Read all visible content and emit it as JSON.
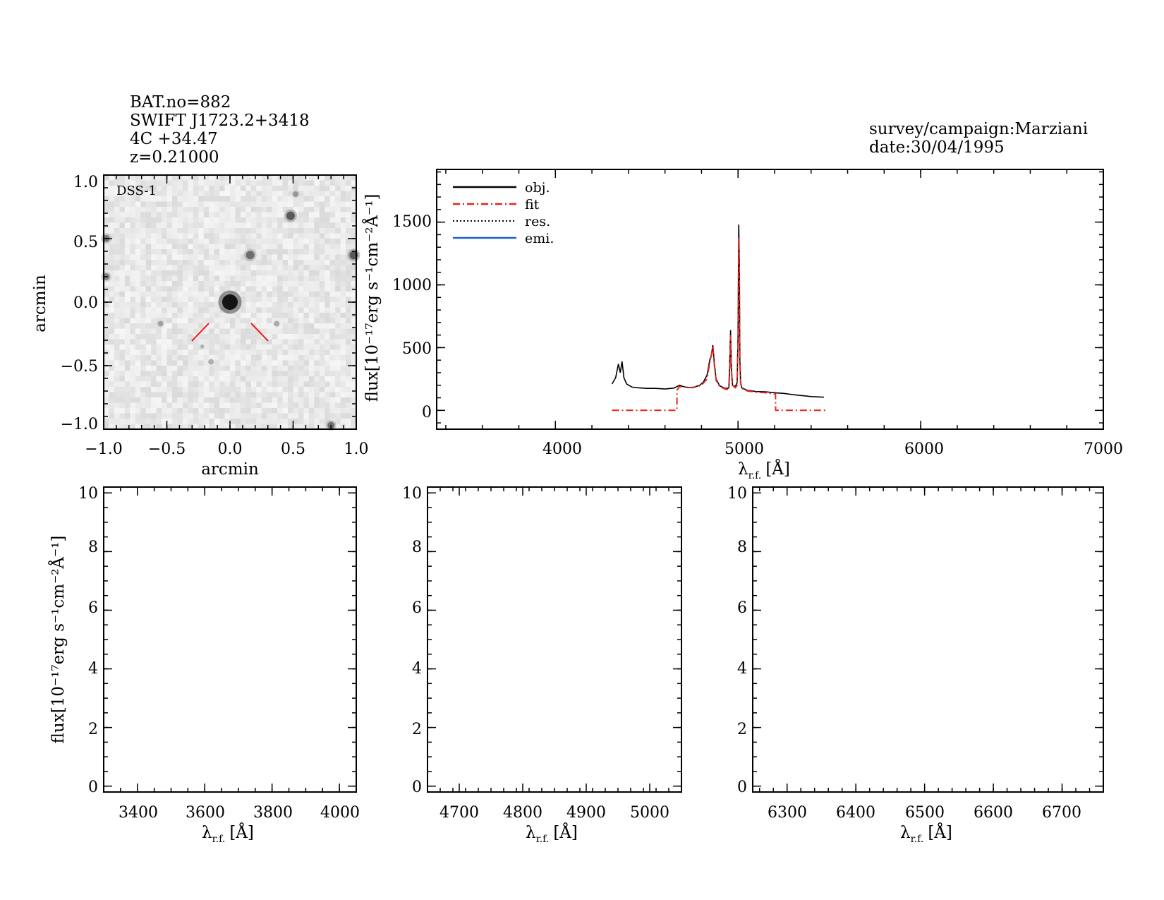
{
  "header": {
    "left_lines": [
      "BAT.no=882",
      "SWIFT J1723.2+3418",
      "4C +34.47",
      "z=0.21000"
    ],
    "right_lines": [
      "survey/campaign:Marziani",
      "date:30/04/1995"
    ]
  },
  "colors": {
    "obj": "#000000",
    "fit": "#e8221e",
    "res": "#000000",
    "emi": "#1f5fd6"
  },
  "chart_data": [
    {
      "type": "heatmap",
      "image_label": "DSS-1",
      "xlabel": "arcmin",
      "ylabel": "arcmin",
      "xlim": [
        -1.0,
        1.0
      ],
      "ylim": [
        -1.0,
        1.0
      ],
      "xticks": [
        "−1.0",
        "−0.5",
        "0.0",
        "0.5",
        "1.0"
      ],
      "yticks": [
        "1.0",
        "0.5",
        "0.0",
        "−0.5",
        "−1.0"
      ],
      "marker_color": "#e8221e"
    },
    {
      "type": "line",
      "xlabel_main": "λ",
      "xlabel_sub": "r.f.",
      "xlabel_unit": "[Å]",
      "ylabel": "flux[10⁻¹⁷erg s⁻¹cm⁻²Å⁻¹]",
      "xlim": [
        3350,
        7000
      ],
      "ylim": [
        -150,
        1920
      ],
      "xticks": [
        "4000",
        "5000",
        "6000",
        "7000"
      ],
      "yticks": [
        "0",
        "500",
        "1000",
        "1500"
      ],
      "legend": [
        "obj.",
        "fit",
        "res.",
        "emi."
      ],
      "legend_position": "top-left",
      "series": [
        {
          "name": "obj.",
          "x": [
            4310,
            4330,
            4345,
            4355,
            4365,
            4375,
            4390,
            4420,
            4450,
            4500,
            4550,
            4600,
            4650,
            4680,
            4700,
            4730,
            4760,
            4790,
            4810,
            4830,
            4845,
            4855,
            4862,
            4870,
            4880,
            4900,
            4930,
            4950,
            4955,
            4959,
            4963,
            4970,
            4985,
            4995,
            5000,
            5004,
            5007,
            5010,
            5014,
            5020,
            5050,
            5100,
            5150,
            5200,
            5250,
            5300,
            5350,
            5400,
            5470
          ],
          "y": [
            210,
            260,
            370,
            300,
            390,
            260,
            210,
            185,
            180,
            175,
            175,
            170,
            178,
            200,
            190,
            182,
            185,
            200,
            225,
            280,
            400,
            450,
            520,
            380,
            250,
            195,
            175,
            178,
            400,
            640,
            350,
            200,
            190,
            220,
            600,
            1480,
            1200,
            400,
            230,
            180,
            160,
            150,
            148,
            140,
            135,
            125,
            118,
            110,
            105
          ]
        },
        {
          "name": "fit",
          "x": [
            4310,
            4665,
            4666,
            4680,
            4700,
            4750,
            4800,
            4830,
            4845,
            4855,
            4862,
            4870,
            4880,
            4900,
            4930,
            4950,
            4955,
            4959,
            4963,
            4970,
            4985,
            4995,
            5000,
            5004,
            5007,
            5010,
            5014,
            5020,
            5050,
            5100,
            5150,
            5205,
            5206,
            5480
          ],
          "y": [
            0,
            0,
            160,
            190,
            185,
            180,
            200,
            250,
            380,
            450,
            515,
            370,
            240,
            190,
            170,
            165,
            350,
            600,
            330,
            200,
            180,
            200,
            560,
            1380,
            1150,
            380,
            220,
            175,
            155,
            145,
            140,
            130,
            0,
            0
          ]
        }
      ]
    },
    {
      "type": "line",
      "xlabel_main": "λ",
      "xlabel_sub": "r.f.",
      "xlabel_unit": "[Å]",
      "ylabel": "flux[10⁻¹⁷erg s⁻¹cm⁻²Å⁻¹]",
      "xlim": [
        3300,
        4050
      ],
      "ylim": [
        -0.2,
        10.2
      ],
      "xticks": [
        3400,
        3600,
        3800,
        4000
      ],
      "yticks": [
        0,
        2,
        4,
        6,
        8,
        10
      ],
      "series": []
    },
    {
      "type": "line",
      "xlabel_main": "λ",
      "xlabel_sub": "r.f.",
      "xlabel_unit": "[Å]",
      "xlim": [
        4650,
        5050
      ],
      "ylim": [
        -0.2,
        10.2
      ],
      "xticks": [
        4700,
        4800,
        4900,
        5000
      ],
      "yticks": [
        0,
        2,
        4,
        6,
        8,
        10
      ],
      "series": []
    },
    {
      "type": "line",
      "xlabel_main": "λ",
      "xlabel_sub": "r.f.",
      "xlabel_unit": "[Å]",
      "xlim": [
        6250,
        6760
      ],
      "ylim": [
        -0.2,
        10.2
      ],
      "xticks": [
        6300,
        6400,
        6500,
        6600,
        6700
      ],
      "yticks": [
        0,
        2,
        4,
        6,
        8,
        10
      ],
      "series": []
    }
  ]
}
